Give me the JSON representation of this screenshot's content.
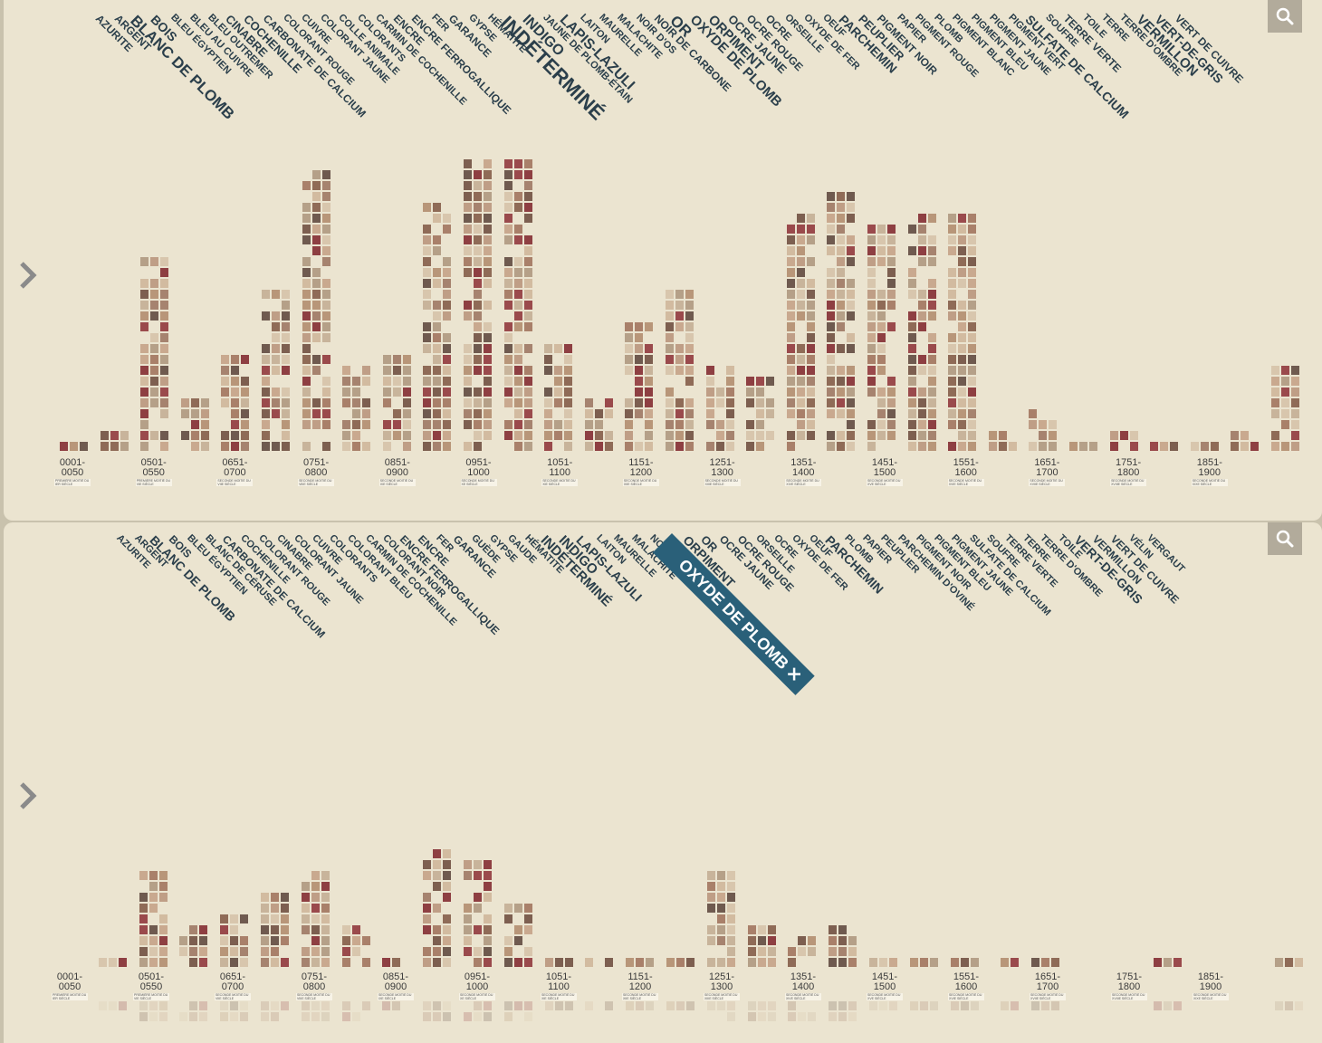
{
  "top_view": {
    "categories": [
      {
        "label": "AZURITE",
        "size": 12,
        "weight": "bold"
      },
      {
        "label": "ARGENT",
        "size": 12
      },
      {
        "label": "BLANC DE PLOMB",
        "size": 17
      },
      {
        "label": "BOIS",
        "size": 14
      },
      {
        "label": "BLEU ÉGYPTIEN",
        "size": 11
      },
      {
        "label": "BLEU AU CUIVRE",
        "size": 11
      },
      {
        "label": "BLEU OUTREMER",
        "size": 11
      },
      {
        "label": "CINABRE",
        "size": 13
      },
      {
        "label": "COCHENILLE",
        "size": 13
      },
      {
        "label": "CARBONATE DE CALCIUM",
        "size": 12
      },
      {
        "label": "COLORANT ROUGE",
        "size": 11
      },
      {
        "label": "CUIVRE",
        "size": 11
      },
      {
        "label": "COLORANT JAUNE",
        "size": 11
      },
      {
        "label": "COLLE ANIMALE",
        "size": 11
      },
      {
        "label": "COLORANTS",
        "size": 11
      },
      {
        "label": "CARMIN DE COCHENILLE",
        "size": 11
      },
      {
        "label": "ENCRE",
        "size": 12
      },
      {
        "label": "ENCRE FERROGALLIQUE",
        "size": 12
      },
      {
        "label": "FER",
        "size": 11
      },
      {
        "label": "GARANCE",
        "size": 12
      },
      {
        "label": "GYPSE",
        "size": 11
      },
      {
        "label": "HÉMATITE",
        "size": 11
      },
      {
        "label": "INDÉTERMINÉ",
        "size": 22
      },
      {
        "label": "INDIGO",
        "size": 16
      },
      {
        "label": "JAUNE DE PLOMB-ÉTAIN",
        "size": 11
      },
      {
        "label": "LAPIS-LAZULI",
        "size": 16
      },
      {
        "label": "LAITON",
        "size": 11
      },
      {
        "label": "MAURELLE",
        "size": 11
      },
      {
        "label": "MALACHITE",
        "size": 11
      },
      {
        "label": "NOIR D'OS",
        "size": 11
      },
      {
        "label": "NOIR DE CARBONE",
        "size": 12
      },
      {
        "label": "OR",
        "size": 17
      },
      {
        "label": "OXYDE DE PLOMB",
        "size": 15
      },
      {
        "label": "ORPIMENT",
        "size": 15
      },
      {
        "label": "OCRE JAUNE",
        "size": 13
      },
      {
        "label": "OCRE ROUGE",
        "size": 12
      },
      {
        "label": "OCRE",
        "size": 12
      },
      {
        "label": "ORSEILLE",
        "size": 11
      },
      {
        "label": "OXYDE DE FER",
        "size": 11
      },
      {
        "label": "OEUF",
        "size": 11
      },
      {
        "label": "PARCHEMIN",
        "size": 14
      },
      {
        "label": "PEUPLIER",
        "size": 13
      },
      {
        "label": "PIGMENT NOIR",
        "size": 12
      },
      {
        "label": "PAPIER",
        "size": 11
      },
      {
        "label": "PIGMENT ROUGE",
        "size": 11
      },
      {
        "label": "PLOMB",
        "size": 11
      },
      {
        "label": "PIGMENT BLANC",
        "size": 11
      },
      {
        "label": "PIGMENT BLEU",
        "size": 11
      },
      {
        "label": "PIGMENT JAUNE",
        "size": 11
      },
      {
        "label": "PIGMENT VERT",
        "size": 11
      },
      {
        "label": "SULFATE DE CALCIUM",
        "size": 14
      },
      {
        "label": "SOUFRE",
        "size": 11
      },
      {
        "label": "TERRE VERTE",
        "size": 12
      },
      {
        "label": "TOILE",
        "size": 11
      },
      {
        "label": "TERRE",
        "size": 11
      },
      {
        "label": "TERRE D'OMBRE",
        "size": 11
      },
      {
        "label": "VERMILLON",
        "size": 15
      },
      {
        "label": "VERT-DE-GRIS",
        "size": 14
      },
      {
        "label": "VERT DE CUIVRE",
        "size": 12
      }
    ]
  },
  "bottom_view": {
    "categories": [
      {
        "label": "AZURITE",
        "size": 11
      },
      {
        "label": "ARGENT",
        "size": 11
      },
      {
        "label": "BLANC DE PLOMB",
        "size": 14
      },
      {
        "label": "BOIS",
        "size": 12
      },
      {
        "label": "BLEU ÉGYPTIEN",
        "size": 11
      },
      {
        "label": "BLANC DE CÉRUSE",
        "size": 11
      },
      {
        "label": "CARBONATE DE CALCIUM",
        "size": 12
      },
      {
        "label": "COCHENILLE",
        "size": 11
      },
      {
        "label": "COLORANT ROUGE",
        "size": 11
      },
      {
        "label": "CINABRE",
        "size": 11
      },
      {
        "label": "COLORANT JAUNE",
        "size": 11
      },
      {
        "label": "CUIVRE",
        "size": 11
      },
      {
        "label": "COLORANTS",
        "size": 11
      },
      {
        "label": "COLORANT BLEU",
        "size": 11
      },
      {
        "label": "CARMIN DE COCHENILLE",
        "size": 11
      },
      {
        "label": "COLORANT NOIR",
        "size": 11
      },
      {
        "label": "ENCRE FERROGALLIQUE",
        "size": 12
      },
      {
        "label": "ENCRE",
        "size": 12
      },
      {
        "label": "FER",
        "size": 11
      },
      {
        "label": "GARANCE",
        "size": 12
      },
      {
        "label": "GUÈDE",
        "size": 11
      },
      {
        "label": "GYPSE",
        "size": 11
      },
      {
        "label": "GAUDE",
        "size": 11
      },
      {
        "label": "HÉMATITE",
        "size": 11
      },
      {
        "label": "INDÉTERMINÉ",
        "size": 15
      },
      {
        "label": "INDIGO",
        "size": 15
      },
      {
        "label": "LAPIS-LAZULI",
        "size": 14
      },
      {
        "label": "LAITON",
        "size": 11
      },
      {
        "label": "MAURELLE",
        "size": 11
      },
      {
        "label": "MALACHITE",
        "size": 11
      },
      {
        "label": "NOIR DE CARBONE",
        "size": 11
      },
      {
        "label": "OXYDE DE PLOMB ✕",
        "size": 18,
        "selected": true
      },
      {
        "label": "ORPIMENT",
        "size": 14
      },
      {
        "label": "OR",
        "size": 13
      },
      {
        "label": "OCRE JAUNE",
        "size": 12
      },
      {
        "label": "OCRE ROUGE",
        "size": 12
      },
      {
        "label": "ORSEILLE",
        "size": 11
      },
      {
        "label": "OCRE",
        "size": 11
      },
      {
        "label": "OXYDE DE FER",
        "size": 11
      },
      {
        "label": "OEUF",
        "size": 11
      },
      {
        "label": "PARCHEMIN",
        "size": 14
      },
      {
        "label": "PLOMB",
        "size": 11
      },
      {
        "label": "PAPIER",
        "size": 11
      },
      {
        "label": "PEUPLIER",
        "size": 11
      },
      {
        "label": "PARCHEMIN D'OVINÉ",
        "size": 11
      },
      {
        "label": "PIGMENT NOIR",
        "size": 11
      },
      {
        "label": "PIGMENT BLEU",
        "size": 11
      },
      {
        "label": "PIGMENT JAUNE",
        "size": 11
      },
      {
        "label": "SULFATE DE CALCIUM",
        "size": 11
      },
      {
        "label": "SOUFRE",
        "size": 11
      },
      {
        "label": "TERRE VERTE",
        "size": 11
      },
      {
        "label": "TERRE",
        "size": 11
      },
      {
        "label": "TERRE D'OMBRE",
        "size": 11
      },
      {
        "label": "TOILE",
        "size": 11
      },
      {
        "label": "VERT-DE-GRIS",
        "size": 14
      },
      {
        "label": "VERMILLON",
        "size": 12
      },
      {
        "label": "VERT DE CUIVRE",
        "size": 12
      },
      {
        "label": "VÉLIN",
        "size": 11
      },
      {
        "label": "VERGAUT",
        "size": 11
      }
    ]
  },
  "periods": [
    {
      "range": "0001-\n0050",
      "note": "PREMIÈRE MOITIÉ DU IER SIÈCLE"
    },
    {
      "range": "0501-\n0550",
      "note": "PREMIÈRE MOITIÉ DU VIE SIÈCLE"
    },
    {
      "range": "0651-\n0700",
      "note": "SECONDE MOITIÉ DU VIIE SIÈCLE"
    },
    {
      "range": "0751-\n0800",
      "note": "SECONDE MOITIÉ DU VIIIE SIÈCLE"
    },
    {
      "range": "0851-\n0900",
      "note": "SECONDE MOITIÉ DU IXE SIÈCLE"
    },
    {
      "range": "0951-\n1000",
      "note": "SECONDE MOITIÉ DU XE SIÈCLE"
    },
    {
      "range": "1051-\n1100",
      "note": "SECONDE MOITIÉ DU XIE SIÈCLE"
    },
    {
      "range": "1151-\n1200",
      "note": "SECONDE MOITIÉ DU XIIE SIÈCLE"
    },
    {
      "range": "1251-\n1300",
      "note": "SECONDE MOITIÉ DU XIIIE SIÈCLE"
    },
    {
      "range": "1351-\n1400",
      "note": "SECONDE MOITIÉ DU XIVE SIÈCLE"
    },
    {
      "range": "1451-\n1500",
      "note": "SECONDE MOITIÉ DU XVE SIÈCLE"
    },
    {
      "range": "1551-\n1600",
      "note": "SECONDE MOITIÉ DU XVIE SIÈCLE"
    },
    {
      "range": "1651-\n1700",
      "note": "SECONDE MOITIÉ DU XVIIE SIÈCLE"
    },
    {
      "range": "1751-\n1800",
      "note": "SECONDE MOITIÉ DU XVIIIE SIÈCLE"
    },
    {
      "range": "1851-\n1900",
      "note": "SECONDE MOITIÉ DU XIXE SIÈCLE"
    }
  ],
  "bar_counts_top": [
    1,
    2,
    18,
    5,
    9,
    15,
    26,
    8,
    9,
    23,
    27,
    27,
    10,
    5,
    12,
    15,
    8,
    7,
    22,
    24,
    21,
    22,
    22,
    2,
    4,
    1,
    2,
    1,
    1,
    2,
    8
  ],
  "bar_counts_bottom": [
    0,
    1,
    9,
    4,
    5,
    7,
    9,
    4,
    1,
    11,
    10,
    6,
    1,
    1,
    1,
    1,
    9,
    4,
    3,
    4,
    1,
    1,
    1,
    1,
    1,
    0,
    0,
    1,
    0,
    0,
    1
  ],
  "colors": {
    "background": "#ebe4d0",
    "label": "#2b3f4b",
    "selected": "#2a6079",
    "search_bg": "#b2ab9b"
  },
  "icons": {
    "search": "search-icon",
    "next": "chevron-right-icon"
  }
}
